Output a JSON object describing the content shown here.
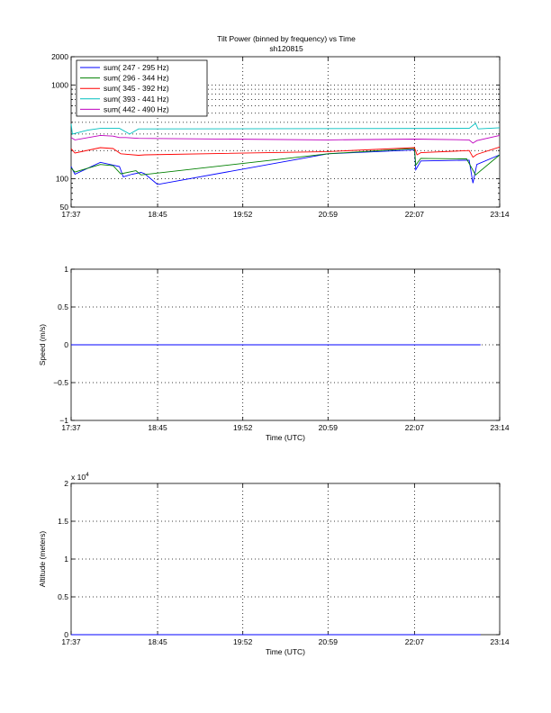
{
  "figure": {
    "title_line1": "Tilt Power (binned by frequency) vs Time",
    "title_line2": "sh120815"
  },
  "chart_data": [
    {
      "type": "line",
      "yscale": "log",
      "ylim": [
        50,
        2000
      ],
      "xlim": [
        "17:37",
        "23:14"
      ],
      "xticks": [
        "17:37",
        "18:45",
        "19:52",
        "20:59",
        "22:07",
        "23:14"
      ],
      "yticks": [
        50,
        100,
        1000,
        2000
      ],
      "ytick_labels": [
        "50",
        "100",
        "1000",
        "2000"
      ],
      "xlabel": "",
      "ylabel": "",
      "grid": true,
      "legend_position": "top-left",
      "series": [
        {
          "name": "sum(  247 -     295 Hz)",
          "color": "#0000ff",
          "points": [
            [
              "17:37",
              135
            ],
            [
              "17:40",
              112
            ],
            [
              "18:00",
              150
            ],
            [
              "18:15",
              135
            ],
            [
              "18:18",
              105
            ],
            [
              "18:25",
              112
            ],
            [
              "18:32",
              117
            ],
            [
              "18:35",
              113
            ],
            [
              "18:45",
              87
            ],
            [
              "20:59",
              185
            ],
            [
              "22:07",
              203
            ],
            [
              "22:08",
              125
            ],
            [
              "22:12",
              155
            ],
            [
              "22:50",
              158
            ],
            [
              "22:53",
              90
            ],
            [
              "22:56",
              142
            ],
            [
              "23:14",
              180
            ]
          ]
        },
        {
          "name": "sum(  296 -     344 Hz)",
          "color": "#008000",
          "points": [
            [
              "17:37",
              130
            ],
            [
              "17:40",
              118
            ],
            [
              "18:00",
              142
            ],
            [
              "18:10",
              138
            ],
            [
              "18:16",
              113
            ],
            [
              "18:25",
              120
            ],
            [
              "18:28",
              122
            ],
            [
              "18:32",
              110
            ],
            [
              "20:59",
              185
            ],
            [
              "22:07",
              210
            ],
            [
              "22:08",
              140
            ],
            [
              "22:12",
              165
            ],
            [
              "22:48",
              163
            ],
            [
              "22:55",
              110
            ],
            [
              "23:14",
              180
            ]
          ]
        },
        {
          "name": "sum(  345 -     392 Hz)",
          "color": "#ff0000",
          "points": [
            [
              "17:37",
              210
            ],
            [
              "17:40",
              188
            ],
            [
              "18:00",
              215
            ],
            [
              "18:10",
              210
            ],
            [
              "18:16",
              185
            ],
            [
              "18:30",
              178
            ],
            [
              "18:35",
              180
            ],
            [
              "20:59",
              195
            ],
            [
              "22:07",
              215
            ],
            [
              "22:09",
              180
            ],
            [
              "22:12",
              190
            ],
            [
              "22:50",
              200
            ],
            [
              "22:53",
              170
            ],
            [
              "22:56",
              182
            ],
            [
              "23:14",
              218
            ]
          ]
        },
        {
          "name": "sum(  393 -     441 Hz)",
          "color": "#00bfbf",
          "points": [
            [
              "17:37",
              385
            ],
            [
              "17:38",
              300
            ],
            [
              "17:50",
              330
            ],
            [
              "18:00",
              345
            ],
            [
              "18:15",
              345
            ],
            [
              "18:23",
              300
            ],
            [
              "18:30",
              340
            ],
            [
              "22:50",
              345
            ],
            [
              "22:55",
              390
            ],
            [
              "22:57",
              340
            ],
            [
              "23:14",
              350
            ]
          ]
        },
        {
          "name": "sum(  442 -     490 Hz)",
          "color": "#bf00bf",
          "points": [
            [
              "17:37",
              275
            ],
            [
              "17:40",
              260
            ],
            [
              "18:00",
              290
            ],
            [
              "18:10",
              285
            ],
            [
              "18:15",
              275
            ],
            [
              "18:20",
              275
            ],
            [
              "18:30",
              270
            ],
            [
              "20:59",
              260
            ],
            [
              "22:07",
              265
            ],
            [
              "22:50",
              260
            ],
            [
              "22:53",
              240
            ],
            [
              "22:56",
              255
            ],
            [
              "23:14",
              290
            ]
          ]
        }
      ]
    },
    {
      "type": "line",
      "ylim": [
        -1,
        1
      ],
      "xlim": [
        "17:37",
        "23:14"
      ],
      "xticks": [
        "17:37",
        "18:45",
        "19:52",
        "20:59",
        "22:07",
        "23:14"
      ],
      "yticks": [
        -1,
        -0.5,
        0,
        0.5,
        1
      ],
      "ytick_labels": [
        "−1",
        "−0.5",
        "0",
        "0.5",
        "1"
      ],
      "xlabel": "Time (UTC)",
      "ylabel": "Speed (m/s)",
      "grid": true,
      "series": [
        {
          "color": "#0000ff",
          "points": [
            [
              "17:37",
              0
            ],
            [
              "22:59",
              0
            ]
          ]
        }
      ]
    },
    {
      "type": "line",
      "ylim": [
        0,
        20000
      ],
      "xlim": [
        "17:37",
        "23:14"
      ],
      "xticks": [
        "17:37",
        "18:45",
        "19:52",
        "20:59",
        "22:07",
        "23:14"
      ],
      "yticks": [
        0,
        5000,
        10000,
        15000,
        20000
      ],
      "ytick_labels": [
        "0",
        "0.5",
        "1",
        "1.5",
        "2"
      ],
      "exponent_label": "x 10",
      "exponent_power": "4",
      "xlabel": "Time (UTC)",
      "ylabel": "Altitude (meters)",
      "grid": true,
      "series": [
        {
          "color": "#0000ff",
          "points": [
            [
              "17:37",
              0
            ],
            [
              "22:59",
              0
            ]
          ]
        }
      ]
    }
  ]
}
